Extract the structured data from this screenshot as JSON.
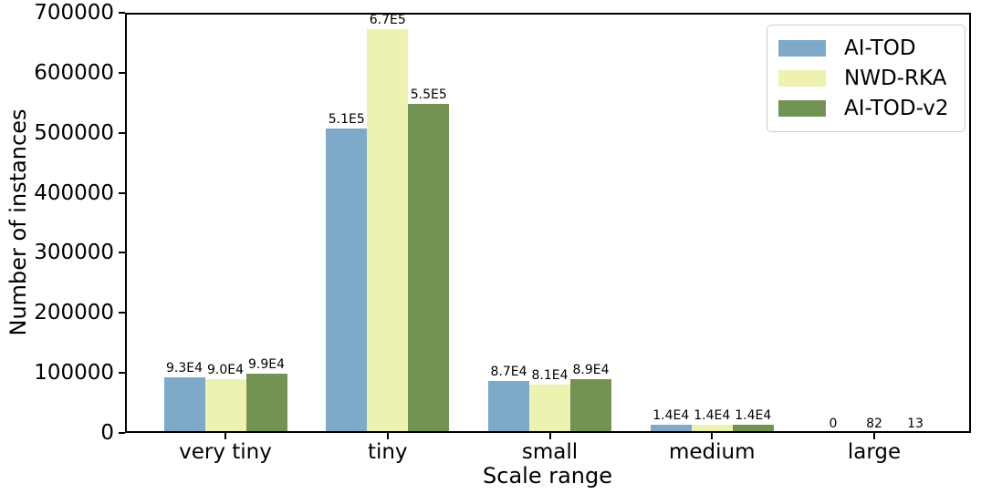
{
  "chart_data": {
    "type": "bar",
    "title": "",
    "xlabel": "Scale range",
    "ylabel": "Number of instances",
    "categories": [
      "very tiny",
      "tiny",
      "small",
      "medium",
      "large"
    ],
    "series": [
      {
        "name": "AI-TOD",
        "color": "#7FA9C9",
        "values": [
          93000,
          507000,
          87000,
          14000,
          0
        ],
        "value_labels": [
          "9.3E4",
          "5.1E5",
          "8.7E4",
          "1.4E4",
          "0"
        ]
      },
      {
        "name": "NWD-RKA",
        "color": "#EEF2B1",
        "values": [
          90000,
          672000,
          81000,
          14000,
          82
        ],
        "value_labels": [
          "9.0E4",
          "6.7E5",
          "8.1E4",
          "1.4E4",
          "82"
        ]
      },
      {
        "name": "AI-TOD-v2",
        "color": "#739355",
        "values": [
          99000,
          548000,
          89000,
          14000,
          13
        ],
        "value_labels": [
          "9.9E4",
          "5.5E5",
          "8.9E4",
          "1.4E4",
          "13"
        ]
      }
    ],
    "ylim": [
      0,
      700000
    ],
    "yticks": [
      0,
      100000,
      200000,
      300000,
      400000,
      500000,
      600000,
      700000
    ],
    "ytick_labels": [
      "0",
      "100000",
      "200000",
      "300000",
      "400000",
      "500000",
      "600000",
      "700000"
    ],
    "legend_position": "upper right",
    "grid": false,
    "background_color": "#ffffff",
    "spine_color": "#000000"
  }
}
